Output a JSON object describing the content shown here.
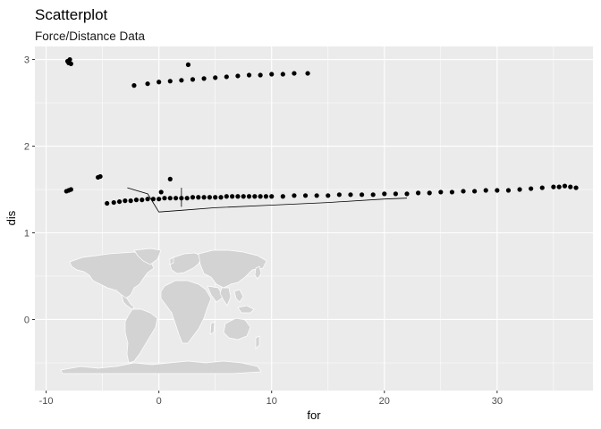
{
  "chart_data": {
    "type": "scatter",
    "title": "Scatterplot",
    "subtitle": "Force/Distance Data",
    "xlabel": "for",
    "ylabel": "dis",
    "xlim": [
      -11,
      38.5
    ],
    "ylim": [
      -0.82,
      3.15
    ],
    "x_ticks": [
      -10,
      0,
      10,
      20,
      30
    ],
    "y_ticks": [
      0,
      1,
      2,
      3
    ],
    "x_tick_labels": [
      "-10",
      "0",
      "10",
      "20",
      "30"
    ],
    "y_tick_labels": [
      "0",
      "1",
      "2",
      "3"
    ],
    "grid": true,
    "legend": "none",
    "colors": {
      "panel": "#ebebeb",
      "grid": "#ffffff",
      "points": "#000000",
      "map_fill": "#d3d3d3"
    },
    "series": [
      {
        "type": "scatter",
        "points": [
          [
            -8,
            2.96
          ],
          [
            -7.9,
            3.0
          ],
          [
            -8.1,
            2.98
          ],
          [
            -7.8,
            2.95
          ],
          [
            -8,
            1.49
          ],
          [
            -7.8,
            1.5
          ],
          [
            -8.2,
            1.48
          ],
          [
            -5.4,
            1.64
          ],
          [
            -5.2,
            1.65
          ],
          [
            2.6,
            2.94
          ],
          [
            1,
            1.62
          ],
          [
            0.2,
            1.47
          ],
          [
            -2.2,
            2.7
          ],
          [
            -1,
            2.72
          ],
          [
            0,
            2.74
          ],
          [
            1,
            2.75
          ],
          [
            2,
            2.76
          ],
          [
            3,
            2.77
          ],
          [
            4,
            2.78
          ],
          [
            5,
            2.79
          ],
          [
            6,
            2.8
          ],
          [
            7,
            2.81
          ],
          [
            8,
            2.82
          ],
          [
            9,
            2.82
          ],
          [
            10,
            2.83
          ],
          [
            11,
            2.83
          ],
          [
            12,
            2.84
          ],
          [
            13.2,
            2.84
          ],
          [
            -4.6,
            1.34
          ],
          [
            -4,
            1.35
          ],
          [
            -3.5,
            1.36
          ],
          [
            -3,
            1.37
          ],
          [
            -2.5,
            1.37
          ],
          [
            -2,
            1.38
          ],
          [
            -1.5,
            1.38
          ],
          [
            -1,
            1.39
          ],
          [
            -0.5,
            1.39
          ],
          [
            0,
            1.39
          ],
          [
            0.5,
            1.4
          ],
          [
            1,
            1.4
          ],
          [
            1.5,
            1.4
          ],
          [
            2,
            1.4
          ],
          [
            2.5,
            1.4
          ],
          [
            3,
            1.41
          ],
          [
            3.5,
            1.41
          ],
          [
            4,
            1.41
          ],
          [
            4.5,
            1.41
          ],
          [
            5,
            1.41
          ],
          [
            5.5,
            1.41
          ],
          [
            6,
            1.42
          ],
          [
            6.5,
            1.42
          ],
          [
            7,
            1.42
          ],
          [
            7.5,
            1.42
          ],
          [
            8,
            1.42
          ],
          [
            8.5,
            1.42
          ],
          [
            9,
            1.42
          ],
          [
            9.5,
            1.42
          ],
          [
            10,
            1.42
          ],
          [
            11,
            1.42
          ],
          [
            12,
            1.43
          ],
          [
            13,
            1.43
          ],
          [
            14,
            1.43
          ],
          [
            15,
            1.43
          ],
          [
            16,
            1.44
          ],
          [
            17,
            1.44
          ],
          [
            18,
            1.44
          ],
          [
            19,
            1.44
          ],
          [
            20,
            1.45
          ],
          [
            21,
            1.45
          ],
          [
            22,
            1.45
          ],
          [
            23,
            1.46
          ],
          [
            24,
            1.46
          ],
          [
            25,
            1.47
          ],
          [
            26,
            1.47
          ],
          [
            27,
            1.48
          ],
          [
            28,
            1.48
          ],
          [
            29,
            1.49
          ],
          [
            30,
            1.49
          ],
          [
            31,
            1.49
          ],
          [
            32,
            1.5
          ],
          [
            33,
            1.51
          ],
          [
            34,
            1.52
          ],
          [
            35,
            1.53
          ],
          [
            35.5,
            1.53
          ],
          [
            36,
            1.54
          ],
          [
            36.5,
            1.53
          ],
          [
            37,
            1.52
          ]
        ]
      },
      {
        "type": "line",
        "points": [
          [
            -2.8,
            1.52
          ],
          [
            -1,
            1.45
          ],
          [
            0,
            1.24
          ],
          [
            2,
            1.26
          ],
          [
            5,
            1.29
          ],
          [
            10,
            1.32
          ],
          [
            15,
            1.35
          ],
          [
            20,
            1.39
          ],
          [
            22,
            1.4
          ]
        ]
      }
    ],
    "annotations": [
      {
        "type": "segment",
        "x": [
          2,
          2
        ],
        "y": [
          1.3,
          1.52
        ]
      }
    ],
    "overlay": "world-map"
  }
}
